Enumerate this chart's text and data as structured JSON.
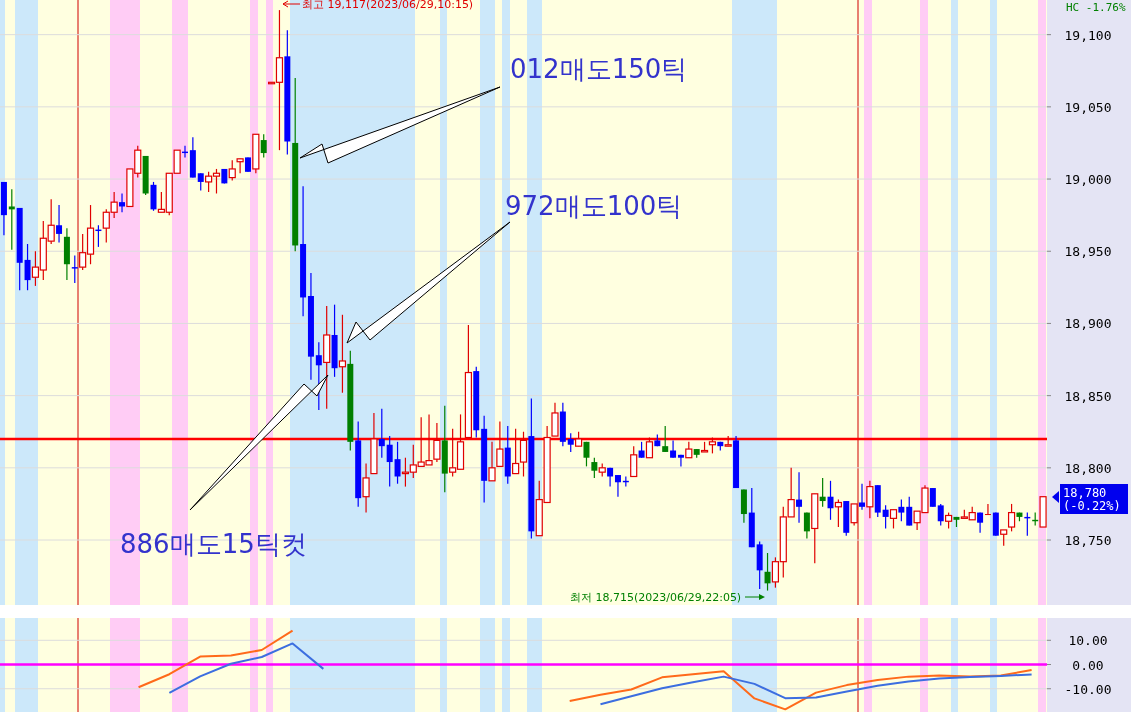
{
  "chart_data": [
    {
      "type": "candlestick",
      "categories": [
        null,
        null,
        null,
        null,
        null,
        null,
        null,
        null,
        null,
        null,
        null,
        null,
        null,
        null,
        null,
        null,
        null,
        null,
        null,
        null,
        null,
        null,
        null,
        null,
        null,
        null,
        null,
        null,
        null,
        null,
        null,
        null,
        null,
        null,
        null,
        null,
        null,
        null,
        null,
        null,
        null,
        null,
        null,
        null,
        null,
        null,
        null,
        null,
        null,
        null,
        null,
        null,
        null,
        null,
        null,
        null,
        null,
        null,
        null,
        null,
        null,
        null,
        null,
        null,
        null,
        null,
        null,
        null,
        null,
        null,
        null,
        null,
        null,
        null,
        null,
        null,
        null,
        null,
        null,
        null,
        null,
        null,
        null,
        null,
        null,
        null,
        null,
        null,
        null,
        null,
        null,
        null,
        null,
        null,
        null,
        null,
        null,
        null,
        null,
        null,
        null,
        null,
        null,
        null,
        null,
        null,
        null,
        null,
        null,
        null,
        null,
        null,
        null,
        null,
        null,
        null,
        null,
        null,
        null,
        null,
        null,
        null,
        null,
        null,
        null,
        null,
        null,
        null,
        null,
        null,
        null,
        null,
        null
      ],
      "ohlc": [
        [
          18998,
          18998,
          18961,
          18975
        ],
        [
          18981,
          18993,
          18951,
          18979
        ],
        [
          18980,
          18980,
          18923,
          18942
        ],
        [
          18944,
          18955,
          18923,
          18930
        ],
        [
          18932,
          18950,
          18926,
          18939
        ],
        [
          18937,
          18971,
          18930,
          18959
        ],
        [
          18957,
          18986,
          18955,
          18968
        ],
        [
          18968,
          18982,
          18956,
          18962
        ],
        [
          18960,
          18966,
          18930,
          18941
        ],
        [
          18939,
          18947,
          18928,
          18938
        ],
        [
          18939,
          18962,
          18937,
          18949
        ],
        [
          18948,
          18982,
          18941,
          18966
        ],
        [
          18965,
          18968,
          18953,
          18964
        ],
        [
          18966,
          18979,
          18956,
          18977
        ],
        [
          18977,
          18991,
          18973,
          18984
        ],
        [
          18984,
          18990,
          18977,
          18981
        ],
        [
          18981,
          19007,
          18981,
          19007
        ],
        [
          19004,
          19023,
          19001,
          19020
        ],
        [
          19016,
          19016,
          18989,
          18990
        ],
        [
          18996,
          18998,
          18978,
          18979
        ],
        [
          18977,
          18991,
          18977,
          18979
        ],
        [
          18977,
          19004,
          18975,
          19004
        ],
        [
          19004,
          19020,
          19004,
          19020
        ],
        [
          19019,
          19023,
          19015,
          19018
        ],
        [
          19020,
          19029,
          19001,
          19001
        ],
        [
          19004,
          19004,
          18992,
          18998
        ],
        [
          18998,
          19005,
          18991,
          19002
        ],
        [
          19002,
          19007,
          18990,
          19004
        ],
        [
          19007,
          19007,
          18997,
          18997
        ],
        [
          19001,
          19013,
          18999,
          19007
        ],
        [
          19012,
          19014,
          19004,
          19014
        ],
        [
          19015,
          19015,
          19005,
          19005
        ],
        [
          19007,
          19031,
          19004,
          19031
        ],
        [
          19027,
          19031,
          19015,
          19018
        ],
        [
          19066,
          19067,
          19066,
          19067
        ],
        [
          19067,
          19117,
          19020,
          19084
        ],
        [
          19085,
          19103,
          19017,
          19026
        ],
        [
          19025,
          19070,
          18950,
          18954
        ],
        [
          18955,
          18995,
          18905,
          18918
        ],
        [
          18919,
          18935,
          18861,
          18877
        ],
        [
          18878,
          18887,
          18840,
          18871
        ],
        [
          18873,
          18912,
          18841,
          18892
        ],
        [
          18892,
          18913,
          18863,
          18869
        ],
        [
          18870,
          18906,
          18852,
          18874
        ],
        [
          18872,
          18881,
          18812,
          18818
        ],
        [
          18819,
          18832,
          18773,
          18779
        ],
        [
          18780,
          18803,
          18769,
          18793
        ],
        [
          18796,
          18838,
          18796,
          18820
        ],
        [
          18820,
          18841,
          18807,
          18815
        ],
        [
          18816,
          18822,
          18787,
          18804
        ],
        [
          18806,
          18818,
          18789,
          18794
        ],
        [
          18796,
          18807,
          18787,
          18797
        ],
        [
          18797,
          18816,
          18793,
          18802
        ],
        [
          18801,
          18835,
          18801,
          18804
        ],
        [
          18802,
          18837,
          18802,
          18805
        ],
        [
          18806,
          18831,
          18804,
          18819
        ],
        [
          18819,
          18843,
          18783,
          18796
        ],
        [
          18797,
          18827,
          18794,
          18800
        ],
        [
          18799,
          18837,
          18799,
          18818
        ],
        [
          18821,
          18899,
          18821,
          18866
        ],
        [
          18867,
          18870,
          18821,
          18826
        ],
        [
          18827,
          18836,
          18776,
          18791
        ],
        [
          18791,
          18818,
          18791,
          18800
        ],
        [
          18801,
          18832,
          18801,
          18813
        ],
        [
          18814,
          18829,
          18789,
          18794
        ],
        [
          18796,
          18827,
          18796,
          18803
        ],
        [
          18804,
          18825,
          18794,
          18819
        ],
        [
          18822,
          18848,
          18751,
          18756
        ],
        [
          18753,
          18791,
          18753,
          18778
        ],
        [
          18776,
          18829,
          18776,
          18821
        ],
        [
          18822,
          18845,
          18822,
          18838
        ],
        [
          18839,
          18845,
          18815,
          18818
        ],
        [
          18820,
          18824,
          18811,
          18816
        ],
        [
          18815,
          18825,
          18815,
          18820
        ],
        [
          18818,
          18818,
          18801,
          18807
        ],
        [
          18804,
          18807,
          18793,
          18798
        ],
        [
          18797,
          18803,
          18794,
          18800
        ],
        [
          18800,
          18800,
          18787,
          18794
        ],
        [
          18795,
          18795,
          18780,
          18790
        ],
        [
          18791,
          18794,
          18787,
          18790
        ],
        [
          18794,
          18815,
          18794,
          18809
        ],
        [
          18812,
          18818,
          18807,
          18807
        ],
        [
          18807,
          18821,
          18807,
          18818
        ],
        [
          18819,
          18823,
          18815,
          18815
        ],
        [
          18815,
          18829,
          18811,
          18811
        ],
        [
          18812,
          18819,
          18807,
          18807
        ],
        [
          18809,
          18809,
          18801,
          18807
        ],
        [
          18807,
          18818,
          18807,
          18813
        ],
        [
          18813,
          18813,
          18807,
          18809
        ],
        [
          18811,
          18818,
          18811,
          18812
        ],
        [
          18816,
          18821,
          18810,
          18818
        ],
        [
          18818,
          18818,
          18812,
          18815
        ],
        [
          18815,
          18822,
          18815,
          18816
        ],
        [
          18819,
          18822,
          18786,
          18786
        ],
        [
          18785,
          18785,
          18762,
          18768
        ],
        [
          18769,
          18786,
          18745,
          18745
        ],
        [
          18747,
          18749,
          18716,
          18729
        ],
        [
          18728,
          18741,
          18715,
          18720
        ],
        [
          18721,
          18738,
          18717,
          18735
        ],
        [
          18735,
          18773,
          18724,
          18766
        ],
        [
          18766,
          18800,
          18766,
          18778
        ],
        [
          18778,
          18797,
          18762,
          18773
        ],
        [
          18769,
          18769,
          18751,
          18756
        ],
        [
          18758,
          18782,
          18734,
          18782
        ],
        [
          18780,
          18793,
          18773,
          18777
        ],
        [
          18780,
          18791,
          18764,
          18772
        ],
        [
          18773,
          18778,
          18759,
          18776
        ],
        [
          18777,
          18777,
          18753,
          18755
        ],
        [
          18762,
          18775,
          18760,
          18775
        ],
        [
          18776,
          18789,
          18771,
          18773
        ],
        [
          18773,
          18791,
          18765,
          18787
        ],
        [
          18788,
          18788,
          18766,
          18769
        ],
        [
          18771,
          18774,
          18758,
          18766
        ],
        [
          18765,
          18771,
          18758,
          18771
        ],
        [
          18773,
          18778,
          18763,
          18769
        ],
        [
          18773,
          18780,
          18760,
          18760
        ],
        [
          18762,
          18770,
          18757,
          18770
        ],
        [
          18769,
          18788,
          18769,
          18786
        ],
        [
          18786,
          18786,
          18773,
          18773
        ],
        [
          18774,
          18775,
          18760,
          18763
        ],
        [
          18763,
          18769,
          18758,
          18767
        ],
        [
          18766,
          18766,
          18759,
          18764
        ],
        [
          18765,
          18771,
          18765,
          18766
        ],
        [
          18764,
          18773,
          18764,
          18769
        ],
        [
          18769,
          18769,
          18755,
          18762
        ],
        [
          18768,
          18775,
          18768,
          18768
        ],
        [
          18769,
          18769,
          18753,
          18753
        ],
        [
          18754,
          18757,
          18746,
          18757
        ],
        [
          18759,
          18775,
          18756,
          18769
        ],
        [
          18769,
          18769,
          18763,
          18766
        ],
        [
          18766,
          18769,
          18753,
          18765
        ],
        [
          18764,
          18769,
          18760,
          18763
        ],
        [
          18759,
          18780,
          18759,
          18780
        ]
      ],
      "colors": [
        "#0000ff",
        "#008000",
        "#0000ff",
        "#0000ff",
        "#e00000",
        "#e00000",
        "#e00000",
        "#0000ff",
        "#008000",
        "#0000ff",
        "#e00000",
        "#e00000",
        "#0000ff",
        "#e00000",
        "#e00000",
        "#0000ff",
        "#e00000",
        "#e00000",
        "#008000",
        "#0000ff",
        "#e00000",
        "#e00000",
        "#e00000",
        "#0000ff",
        "#0000ff",
        "#0000ff",
        "#e00000",
        "#e00000",
        "#0000ff",
        "#e00000",
        "#e00000",
        "#0000ff",
        "#e00000",
        "#008000",
        "#e00000",
        "#e00000",
        "#0000ff",
        "#008000",
        "#0000ff",
        "#0000ff",
        "#0000ff",
        "#e00000",
        "#0000ff",
        "#e00000",
        "#008000",
        "#0000ff",
        "#e00000",
        "#e00000",
        "#0000ff",
        "#0000ff",
        "#0000ff",
        "#e00000",
        "#e00000",
        "#e00000",
        "#e00000",
        "#e00000",
        "#008000",
        "#e00000",
        "#e00000",
        "#e00000",
        "#0000ff",
        "#0000ff",
        "#e00000",
        "#e00000",
        "#0000ff",
        "#e00000",
        "#e00000",
        "#0000ff",
        "#e00000",
        "#e00000",
        "#e00000",
        "#0000ff",
        "#0000ff",
        "#e00000",
        "#008000",
        "#008000",
        "#e00000",
        "#0000ff",
        "#0000ff",
        "#0000ff",
        "#e00000",
        "#0000ff",
        "#e00000",
        "#0000ff",
        "#008000",
        "#0000ff",
        "#0000ff",
        "#e00000",
        "#008000",
        "#e00000",
        "#e00000",
        "#0000ff",
        "#e00000",
        "#0000ff",
        "#008000",
        "#0000ff",
        "#0000ff",
        "#008000",
        "#e00000",
        "#e00000",
        "#e00000",
        "#0000ff",
        "#008000",
        "#e00000",
        "#008000",
        "#0000ff",
        "#e00000",
        "#0000ff",
        "#e00000",
        "#0000ff",
        "#e00000",
        "#0000ff",
        "#0000ff",
        "#e00000",
        "#0000ff",
        "#0000ff",
        "#e00000",
        "#e00000",
        "#0000ff",
        "#0000ff",
        "#e00000",
        "#008000",
        "#e00000",
        "#e00000",
        "#0000ff",
        "#e00000",
        "#0000ff",
        "#e00000",
        "#e00000",
        "#008000",
        "#0000ff",
        "#008000",
        "#e00000"
      ],
      "ylim": [
        18705,
        19124
      ],
      "yticks": [
        {
          "value": 18750,
          "label": "18,750"
        },
        {
          "value": 18800,
          "label": "18,800"
        },
        {
          "value": 18850,
          "label": "18,850"
        },
        {
          "value": 18900,
          "label": "18,900"
        },
        {
          "value": 18950,
          "label": "18,950"
        },
        {
          "value": 19000,
          "label": "19,000"
        },
        {
          "value": 19050,
          "label": "19,050"
        },
        {
          "value": 19100,
          "label": "19,100"
        }
      ],
      "grid": "y",
      "tick_labels": "y",
      "ref_lines": [
        {
          "axis": "y",
          "value": 18820,
          "color": "#ff0000"
        }
      ],
      "annotations": [
        "최고 19,117(2023/06/29,10:15)",
        "최저 18,715(2023/06/29,22:05)",
        "012매도150틱",
        "972매도100틱",
        "886매도15틱컷",
        "HC  -1.76%",
        "18,780 (-0.22%)"
      ]
    },
    {
      "type": "line",
      "categories": [
        null,
        null,
        null,
        null,
        null,
        null,
        null,
        null,
        null,
        null,
        null,
        null,
        null,
        null,
        null,
        null,
        null,
        null,
        null,
        null,
        null,
        null,
        null,
        null,
        null,
        null,
        null,
        null,
        null,
        null,
        null,
        null,
        null,
        null
      ],
      "ylim": [
        -19.6,
        19.2
      ],
      "yticks": [
        {
          "value": 10,
          "label": "10.00"
        },
        {
          "value": 0,
          "label": "0.00"
        },
        {
          "value": -10,
          "label": "-10.00"
        }
      ],
      "grid": "y",
      "tick_labels": "y",
      "ref_lines": [
        {
          "axis": "y",
          "value": 0,
          "color": "#ff00ff"
        }
      ],
      "series": [
        {
          "color": "#ff6a1a",
          "values": [
            null,
            null,
            null,
            null,
            -9.4,
            -4.0,
            3.3,
            3.7,
            6.0,
            14.0,
            null,
            null,
            null,
            null,
            null,
            null,
            null,
            null,
            -15.1,
            -12.5,
            -10.3,
            -5.3,
            -4.0,
            -2.8,
            -14,
            -18.5,
            -11.6,
            -8.5,
            -6.4,
            -5.0,
            -4.5,
            -4.9,
            -4.5,
            -2.3
          ]
        },
        {
          "color": "#3c6ee0",
          "values": [
            null,
            null,
            null,
            null,
            null,
            -11.7,
            -4.9,
            0.3,
            3.1,
            8.7,
            -1.8,
            null,
            null,
            null,
            null,
            null,
            null,
            null,
            null,
            -16.4,
            -13.1,
            -9.8,
            -7.3,
            -5.0,
            -8.0,
            -13.9,
            -13.6,
            -11.1,
            -8.8,
            -7.0,
            -5.8,
            -5.2,
            -4.7,
            -4.1
          ]
        }
      ]
    }
  ]
}
